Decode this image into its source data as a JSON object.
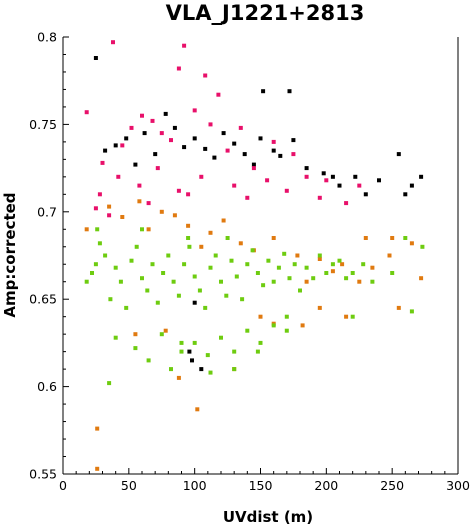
{
  "chart_data": {
    "type": "scatter",
    "title": "VLA_J1221+2813",
    "xlabel": "UVdist (m)",
    "ylabel": "Amp:corrected",
    "xlim": [
      0,
      300
    ],
    "ylim": [
      0.55,
      0.8
    ],
    "xticks": [
      0,
      50,
      100,
      150,
      200,
      250,
      300
    ],
    "yticks": [
      0.55,
      0.6,
      0.65,
      0.7,
      0.75,
      0.8
    ],
    "xtick_labels": [
      "0",
      "50",
      "100",
      "150",
      "200",
      "250",
      "300"
    ],
    "ytick_labels": [
      "0.55",
      "0.6",
      "0.65",
      "0.7",
      "0.75",
      "0.8"
    ],
    "grid": false,
    "legend": "none",
    "series": [
      {
        "color": "#000000",
        "points": [
          [
            25,
            0.788
          ],
          [
            32,
            0.735
          ],
          [
            40,
            0.738
          ],
          [
            48,
            0.742
          ],
          [
            55,
            0.727
          ],
          [
            62,
            0.745
          ],
          [
            70,
            0.733
          ],
          [
            78,
            0.756
          ],
          [
            85,
            0.748
          ],
          [
            92,
            0.737
          ],
          [
            100,
            0.742
          ],
          [
            108,
            0.736
          ],
          [
            115,
            0.731
          ],
          [
            122,
            0.745
          ],
          [
            130,
            0.739
          ],
          [
            138,
            0.733
          ],
          [
            145,
            0.727
          ],
          [
            150,
            0.742
          ],
          [
            152,
            0.769
          ],
          [
            160,
            0.735
          ],
          [
            165,
            0.732
          ],
          [
            172,
            0.769
          ],
          [
            175,
            0.741
          ],
          [
            185,
            0.725
          ],
          [
            198,
            0.722
          ],
          [
            205,
            0.72
          ],
          [
            210,
            0.715
          ],
          [
            222,
            0.72
          ],
          [
            240,
            0.718
          ],
          [
            255,
            0.733
          ],
          [
            265,
            0.715
          ],
          [
            272,
            0.72
          ],
          [
            96,
            0.62
          ],
          [
            105,
            0.61
          ],
          [
            100,
            0.648
          ],
          [
            260,
            0.71
          ],
          [
            98,
            0.615
          ],
          [
            230,
            0.71
          ]
        ]
      },
      {
        "color": "#e8106a",
        "points": [
          [
            18,
            0.757
          ],
          [
            30,
            0.728
          ],
          [
            38,
            0.797
          ],
          [
            45,
            0.738
          ],
          [
            52,
            0.748
          ],
          [
            60,
            0.755
          ],
          [
            68,
            0.752
          ],
          [
            75,
            0.745
          ],
          [
            82,
            0.741
          ],
          [
            88,
            0.782
          ],
          [
            92,
            0.795
          ],
          [
            100,
            0.758
          ],
          [
            108,
            0.778
          ],
          [
            112,
            0.75
          ],
          [
            118,
            0.767
          ],
          [
            125,
            0.735
          ],
          [
            135,
            0.748
          ],
          [
            145,
            0.725
          ],
          [
            160,
            0.74
          ],
          [
            175,
            0.733
          ],
          [
            185,
            0.72
          ],
          [
            200,
            0.718
          ],
          [
            225,
            0.715
          ],
          [
            28,
            0.71
          ],
          [
            42,
            0.72
          ],
          [
            58,
            0.715
          ],
          [
            72,
            0.725
          ],
          [
            88,
            0.712
          ],
          [
            105,
            0.72
          ],
          [
            130,
            0.715
          ],
          [
            155,
            0.718
          ],
          [
            170,
            0.712
          ],
          [
            195,
            0.708
          ],
          [
            215,
            0.705
          ],
          [
            25,
            0.702
          ],
          [
            35,
            0.698
          ],
          [
            65,
            0.705
          ],
          [
            95,
            0.71
          ],
          [
            140,
            0.708
          ]
        ]
      },
      {
        "color": "#e07a10",
        "points": [
          [
            26,
            0.553
          ],
          [
            26,
            0.576
          ],
          [
            35,
            0.703
          ],
          [
            45,
            0.697
          ],
          [
            58,
            0.706
          ],
          [
            65,
            0.69
          ],
          [
            75,
            0.7
          ],
          [
            85,
            0.698
          ],
          [
            95,
            0.692
          ],
          [
            105,
            0.68
          ],
          [
            112,
            0.688
          ],
          [
            122,
            0.695
          ],
          [
            135,
            0.682
          ],
          [
            145,
            0.678
          ],
          [
            160,
            0.685
          ],
          [
            178,
            0.675
          ],
          [
            185,
            0.66
          ],
          [
            195,
            0.673
          ],
          [
            205,
            0.666
          ],
          [
            212,
            0.67
          ],
          [
            225,
            0.66
          ],
          [
            230,
            0.685
          ],
          [
            248,
            0.675
          ],
          [
            255,
            0.645
          ],
          [
            265,
            0.682
          ],
          [
            272,
            0.662
          ],
          [
            88,
            0.605
          ],
          [
            78,
            0.632
          ],
          [
            102,
            0.587
          ],
          [
            250,
            0.685
          ],
          [
            215,
            0.64
          ],
          [
            195,
            0.645
          ],
          [
            182,
            0.635
          ],
          [
            130,
            0.61
          ],
          [
            160,
            0.636
          ],
          [
            235,
            0.668
          ],
          [
            18,
            0.69
          ],
          [
            55,
            0.63
          ],
          [
            150,
            0.64
          ]
        ]
      },
      {
        "color": "#6ecc10",
        "points": [
          [
            18,
            0.66
          ],
          [
            22,
            0.665
          ],
          [
            25,
            0.67
          ],
          [
            28,
            0.682
          ],
          [
            32,
            0.675
          ],
          [
            36,
            0.65
          ],
          [
            40,
            0.668
          ],
          [
            44,
            0.66
          ],
          [
            48,
            0.645
          ],
          [
            52,
            0.672
          ],
          [
            56,
            0.68
          ],
          [
            60,
            0.662
          ],
          [
            64,
            0.655
          ],
          [
            68,
            0.67
          ],
          [
            72,
            0.648
          ],
          [
            76,
            0.665
          ],
          [
            80,
            0.675
          ],
          [
            84,
            0.66
          ],
          [
            88,
            0.652
          ],
          [
            92,
            0.67
          ],
          [
            96,
            0.68
          ],
          [
            100,
            0.663
          ],
          [
            104,
            0.655
          ],
          [
            108,
            0.645
          ],
          [
            112,
            0.668
          ],
          [
            116,
            0.675
          ],
          [
            120,
            0.66
          ],
          [
            124,
            0.652
          ],
          [
            128,
            0.672
          ],
          [
            132,
            0.663
          ],
          [
            136,
            0.65
          ],
          [
            140,
            0.67
          ],
          [
            144,
            0.678
          ],
          [
            148,
            0.665
          ],
          [
            152,
            0.658
          ],
          [
            156,
            0.672
          ],
          [
            160,
            0.66
          ],
          [
            164,
            0.668
          ],
          [
            168,
            0.676
          ],
          [
            172,
            0.662
          ],
          [
            176,
            0.67
          ],
          [
            180,
            0.655
          ],
          [
            185,
            0.668
          ],
          [
            190,
            0.662
          ],
          [
            195,
            0.675
          ],
          [
            200,
            0.665
          ],
          [
            205,
            0.67
          ],
          [
            210,
            0.672
          ],
          [
            215,
            0.662
          ],
          [
            220,
            0.665
          ],
          [
            228,
            0.67
          ],
          [
            235,
            0.66
          ],
          [
            250,
            0.665
          ],
          [
            260,
            0.685
          ],
          [
            265,
            0.643
          ],
          [
            273,
            0.68
          ],
          [
            40,
            0.628
          ],
          [
            55,
            0.622
          ],
          [
            65,
            0.615
          ],
          [
            75,
            0.63
          ],
          [
            82,
            0.61
          ],
          [
            90,
            0.62
          ],
          [
            100,
            0.625
          ],
          [
            110,
            0.618
          ],
          [
            120,
            0.628
          ],
          [
            130,
            0.62
          ],
          [
            140,
            0.632
          ],
          [
            150,
            0.625
          ],
          [
            160,
            0.635
          ],
          [
            170,
            0.64
          ],
          [
            35,
            0.602
          ],
          [
            90,
            0.625
          ],
          [
            112,
            0.608
          ],
          [
            130,
            0.61
          ],
          [
            148,
            0.62
          ],
          [
            170,
            0.632
          ],
          [
            220,
            0.64
          ],
          [
            26,
            0.69
          ],
          [
            60,
            0.69
          ],
          [
            95,
            0.685
          ],
          [
            125,
            0.685
          ]
        ]
      }
    ]
  }
}
